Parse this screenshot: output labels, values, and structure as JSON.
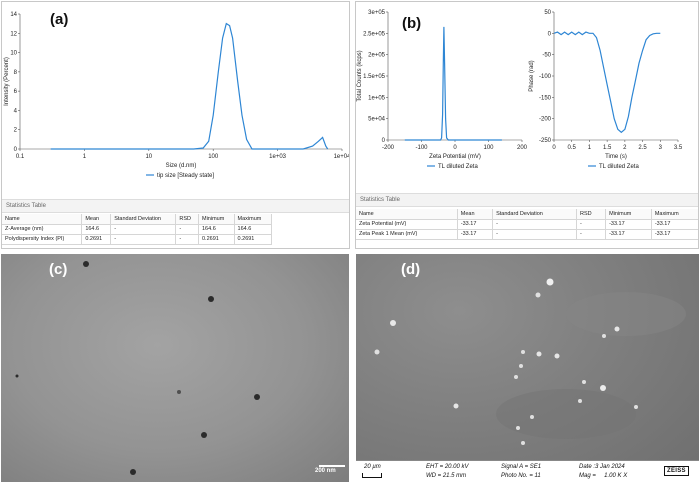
{
  "panel_a": {
    "tag": "(a)",
    "stats_title": "Statistics Table",
    "headers": [
      "Name",
      "Mean",
      "Standard Deviation",
      "RSD",
      "Minimum",
      "Maximum"
    ],
    "rows": [
      [
        "Z-Average (nm)",
        "164.6",
        "-",
        "-",
        "164.6",
        "164.6"
      ],
      [
        "Polydispersity Index (PI)",
        "0.2691",
        "-",
        "-",
        "0.2691",
        "0.2691"
      ]
    ]
  },
  "panel_b": {
    "tag": "(b)",
    "stats_title": "Statistics Table",
    "headers": [
      "Name",
      "Mean",
      "Standard Deviation",
      "RSD",
      "Minimum",
      "Maximum"
    ],
    "rows": [
      [
        "Zeta Potential (mV)",
        "-33.17",
        "-",
        "-",
        "-33.17",
        "-33.17"
      ],
      [
        "Zeta Peak 1 Mean (mV)",
        "-33.17",
        "-",
        "-",
        "-33.17",
        "-33.17"
      ]
    ]
  },
  "panel_c": {
    "tag": "(c)",
    "scale_label": "200 nm"
  },
  "panel_d": {
    "tag": "(d)",
    "scale_label": "20 µm",
    "eht": "EHT = 20.00 kV",
    "wd": "WD = 21.5 mm",
    "signal": "Signal A = SE1",
    "photo": "Photo No. = 11",
    "date": "Date :3 Jan 2024",
    "mag": "Mag =     1.00 K X",
    "logo": "ZEISS"
  },
  "colors": {
    "line": "#2e86d4",
    "tem_bg": "#8f8f8f",
    "sem_bg": "#7d7d7d"
  },
  "chart_data": [
    {
      "type": "line",
      "xscale": "log",
      "xlabel": "Size (d.nm)",
      "ylabel": "Intensity (Percent)",
      "xlim": [
        0.1,
        10000
      ],
      "ylim": [
        0,
        14
      ],
      "xticks": [
        "0.1",
        "1",
        "10",
        "100",
        "1e+03",
        "1e+04"
      ],
      "yticks": [
        "0",
        "2",
        "4",
        "6",
        "8",
        "10",
        "12",
        "14"
      ],
      "legend": "tip size [Steady state]",
      "series": [
        {
          "name": "tip size [Steady state]",
          "x": [
            0.3,
            10,
            50,
            70,
            85,
            100,
            120,
            140,
            160,
            180,
            200,
            240,
            280,
            330,
            400,
            480,
            560,
            650,
            1000,
            2500,
            3500,
            4300,
            5000,
            5600,
            6000
          ],
          "y": [
            0,
            0,
            0,
            0.1,
            0.8,
            3.5,
            8,
            11.5,
            13.0,
            12.8,
            11.5,
            7,
            3.5,
            1,
            0,
            0,
            0,
            0,
            0,
            0,
            0.3,
            0.8,
            1.2,
            0.3,
            0
          ]
        }
      ]
    },
    {
      "type": "line",
      "xlabel": "Zeta Potential (mV)",
      "ylabel": "Total Counts (kcps)",
      "xlim": [
        -200,
        200
      ],
      "ylim": [
        0,
        300000
      ],
      "xticks": [
        "-200",
        "-100",
        "0",
        "100",
        "200"
      ],
      "yticks": [
        "0",
        "5e+04",
        "1e+05",
        "1.5e+05",
        "2e+05",
        "2.5e+05",
        "3e+05"
      ],
      "legend": "TL diluted Zeta",
      "series": [
        {
          "name": "TL diluted Zeta",
          "x": [
            -150,
            -50,
            -43,
            -40,
            -37,
            -35,
            -33,
            -31,
            -28,
            -25,
            -20,
            140
          ],
          "y": [
            0,
            0,
            0,
            5000,
            60000,
            180000,
            265000,
            180000,
            50000,
            5000,
            0,
            0
          ]
        }
      ]
    },
    {
      "type": "line",
      "xlabel": "Time (s)",
      "ylabel": "Phase (rad)",
      "xlim": [
        0,
        3.5
      ],
      "ylim": [
        -250,
        50
      ],
      "xticks": [
        "0",
        "0.5",
        "1",
        "1.5",
        "2",
        "2.5",
        "3",
        "3.5"
      ],
      "yticks": [
        "50",
        "0",
        "-50",
        "-100",
        "-150",
        "-200",
        "-250"
      ],
      "legend": "TL diluted Zeta",
      "series": [
        {
          "name": "TL diluted Zeta",
          "x": [
            0,
            0.1,
            0.2,
            0.3,
            0.4,
            0.5,
            0.6,
            0.7,
            0.8,
            0.9,
            1.0,
            1.1,
            1.2,
            1.3,
            1.4,
            1.5,
            1.6,
            1.7,
            1.8,
            1.9,
            2.0,
            2.1,
            2.2,
            2.3,
            2.4,
            2.5,
            2.6,
            2.7,
            2.8,
            2.9,
            3.0
          ],
          "y": [
            0,
            3,
            -3,
            3,
            -3,
            3,
            -3,
            3,
            -3,
            3,
            0,
            0,
            -10,
            -40,
            -80,
            -120,
            -160,
            -200,
            -225,
            -232,
            -225,
            -195,
            -150,
            -110,
            -70,
            -40,
            -15,
            -5,
            -1,
            0,
            0
          ]
        }
      ]
    }
  ]
}
